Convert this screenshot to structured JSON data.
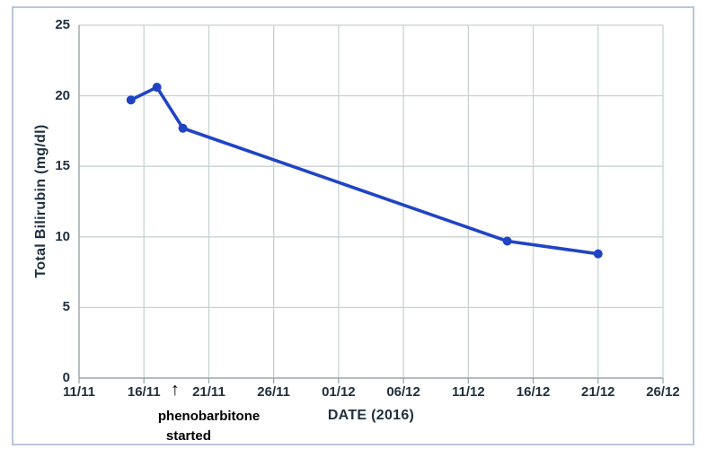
{
  "window": {
    "background": "#ffffff",
    "frame_border_color": "#b9c7da"
  },
  "chart_data": {
    "type": "line",
    "title": "",
    "xlabel": "DATE (2016)",
    "ylabel": "Total Bilirubin (mg/dl)",
    "ylim": [
      0,
      25
    ],
    "y_ticks": [
      0,
      5,
      10,
      15,
      20,
      25
    ],
    "x_ticks": [
      {
        "label": "11/11",
        "day": 0
      },
      {
        "label": "16/11",
        "day": 5
      },
      {
        "label": "21/11",
        "day": 10
      },
      {
        "label": "26/11",
        "day": 15
      },
      {
        "label": "01/12",
        "day": 20
      },
      {
        "label": "06/12",
        "day": 25
      },
      {
        "label": "11/12",
        "day": 30
      },
      {
        "label": "16/12",
        "day": 35
      },
      {
        "label": "21/12",
        "day": 40
      },
      {
        "label": "26/12",
        "day": 45
      }
    ],
    "grid": true,
    "legend": "none",
    "series": [
      {
        "name": "Total Bilirubin (mg/dl)",
        "color": "#2044c4",
        "marker": "circle",
        "points": [
          {
            "date": "15/11",
            "day": 4,
            "value": 19.7
          },
          {
            "date": "17/11",
            "day": 6,
            "value": 20.6
          },
          {
            "date": "19/11",
            "day": 8,
            "value": 17.7
          },
          {
            "date": "14/12",
            "day": 33,
            "value": 9.7
          },
          {
            "date": "21/12",
            "day": 40,
            "value": 8.8
          }
        ]
      }
    ],
    "annotation": {
      "arrow_glyph": "↑",
      "line1": "phenobarbitone",
      "line2": "started",
      "day": 7.4
    },
    "colors": {
      "line": "#2044c4",
      "grid": "#cad2d3",
      "axis": "#9aa5a9",
      "tick_label": "#20303f",
      "axis_title": "#20303f",
      "annotation_text": "#000000"
    }
  }
}
